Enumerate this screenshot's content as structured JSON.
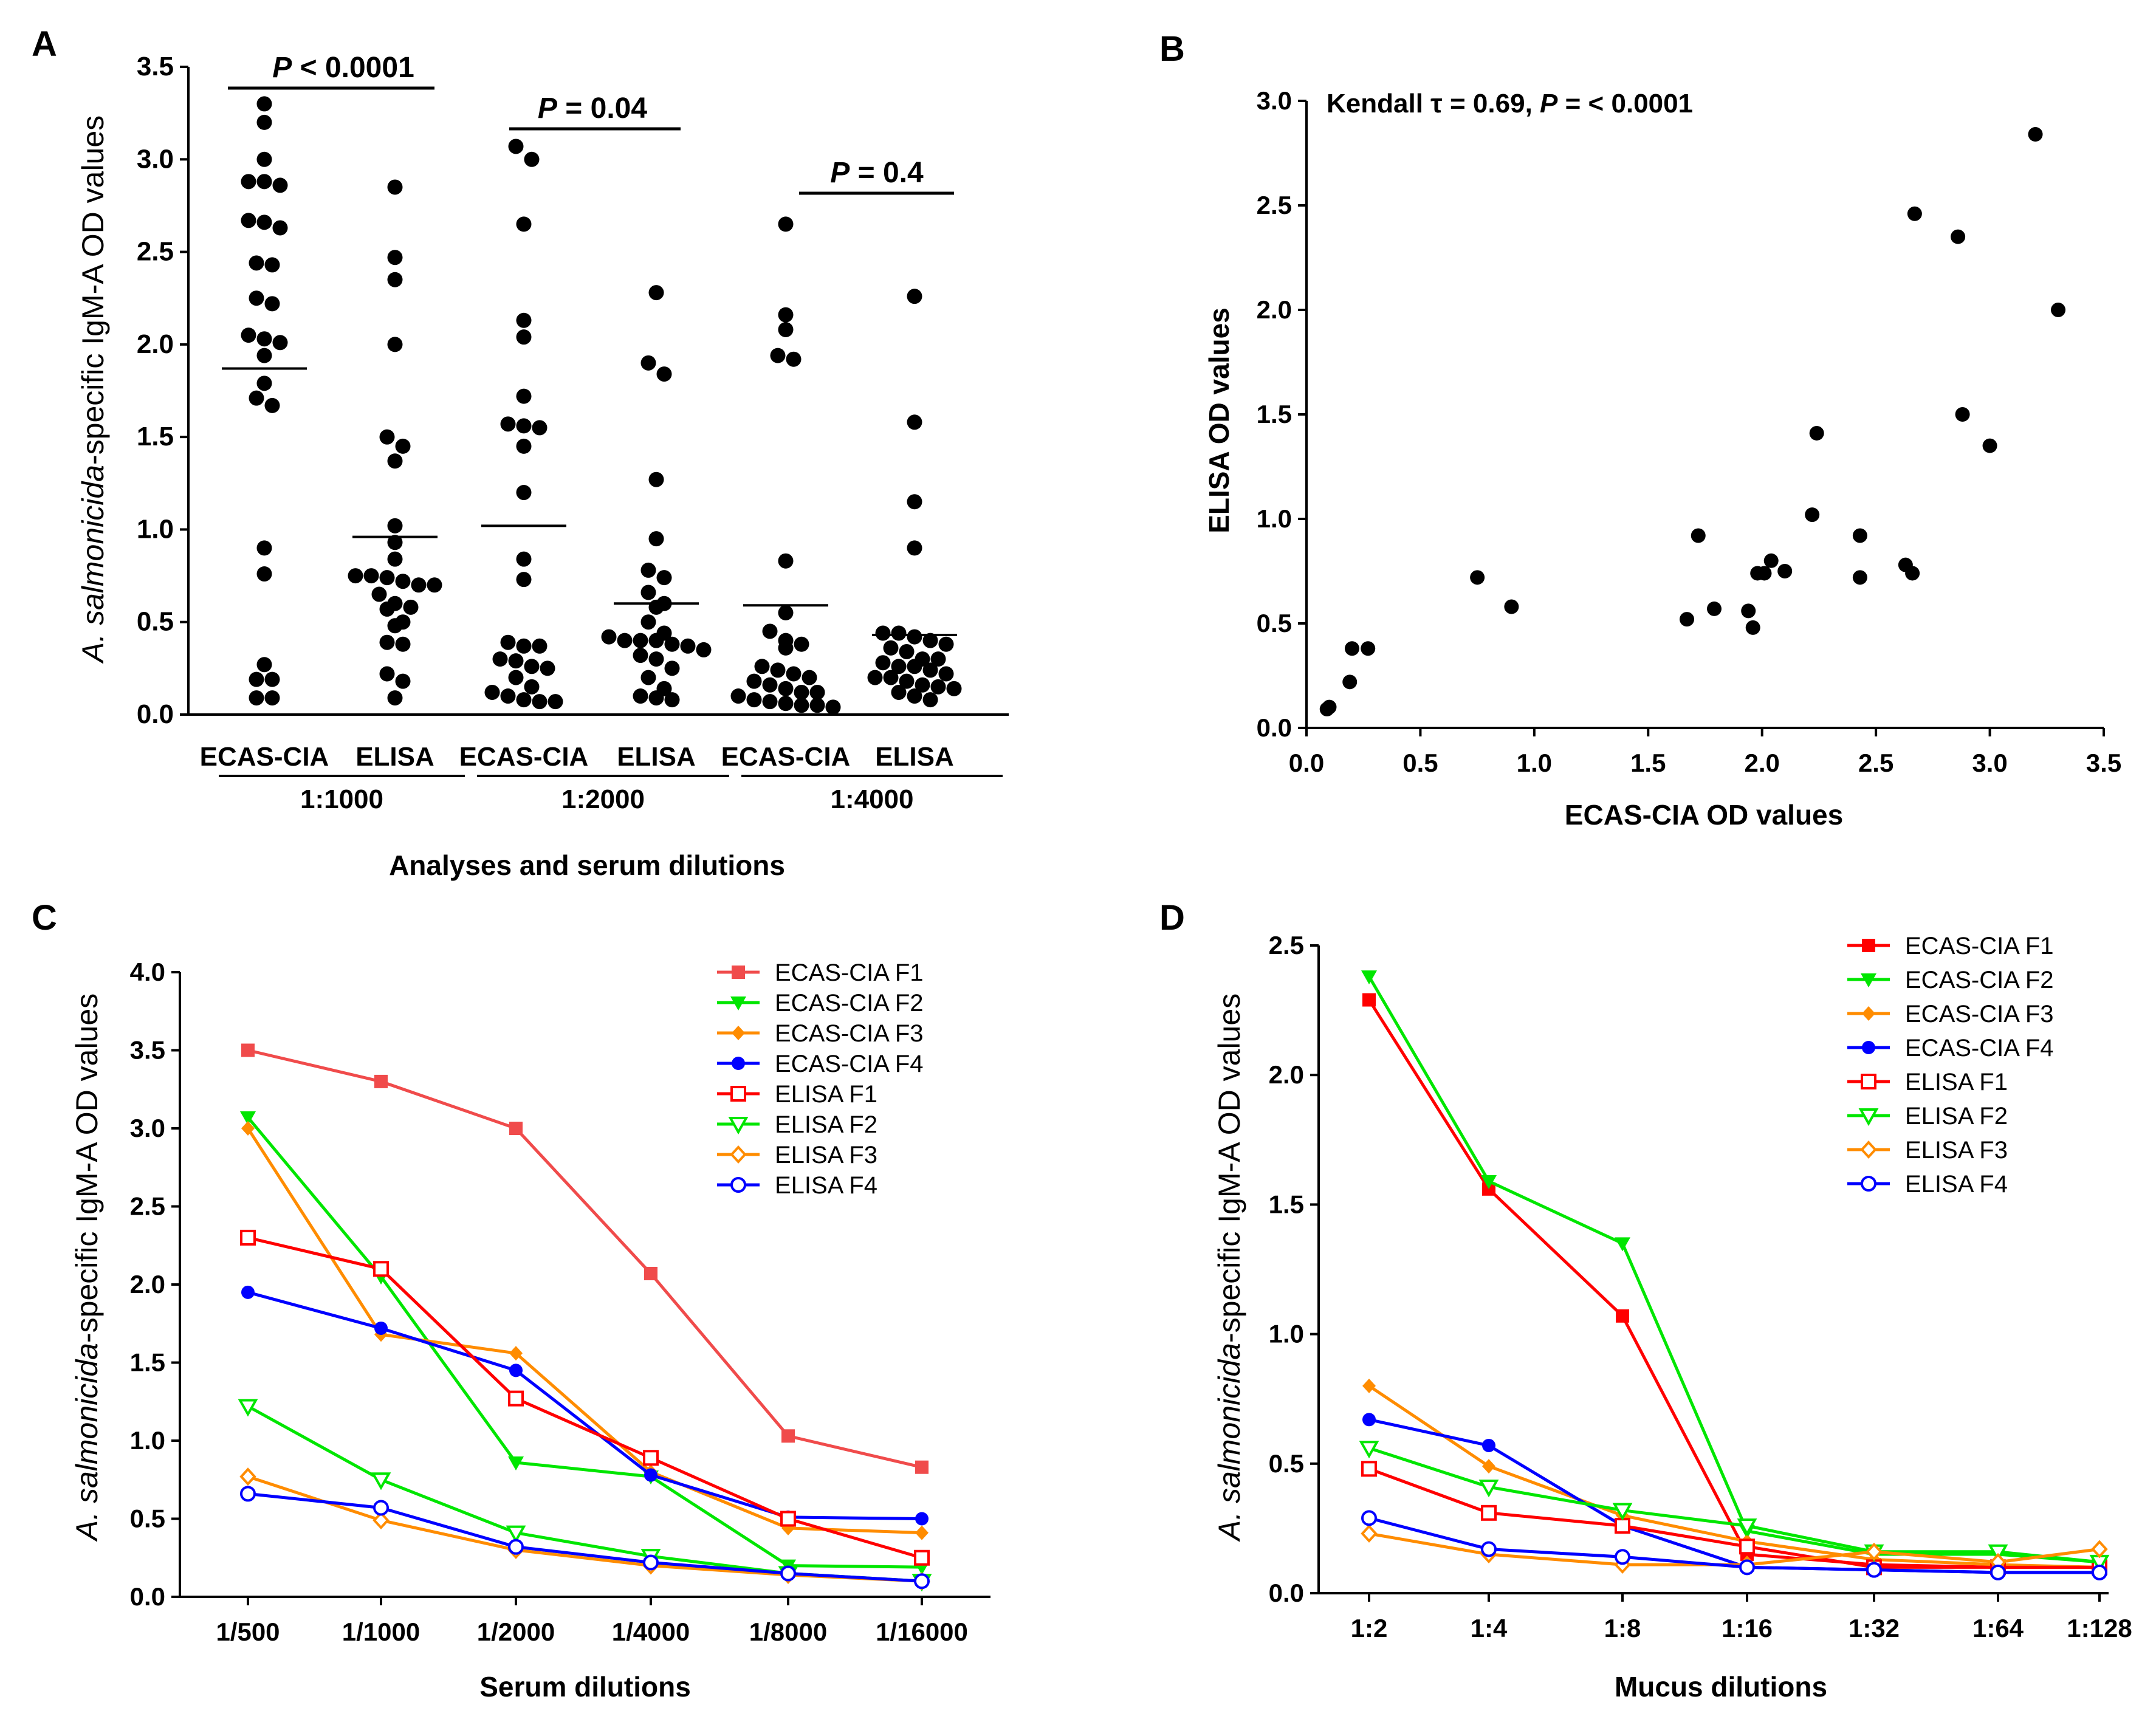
{
  "panels": {
    "a": "A",
    "b": "B",
    "c": "C",
    "d": "D"
  },
  "colors": {
    "ink": "#000000",
    "red": "#ff0000",
    "salmon": "#f04b4b",
    "green": "#00e600",
    "orange": "#ff8c00",
    "blue": "#0000ff"
  },
  "chart_data": [
    {
      "id": "A",
      "type": "scatter",
      "ylabel_italic": "A. salmonicida",
      "ylabel_rest": "-specific IgM-A OD values",
      "xlabel": "Analyses and serum dilutions",
      "ylim": [
        0,
        3.5
      ],
      "y_ticks": [
        "0.0",
        "0.5",
        "1.0",
        "1.5",
        "2.0",
        "2.5",
        "3.0",
        "3.5"
      ],
      "columns": [
        {
          "label": "ECAS-CIA",
          "group": 0,
          "mean": 1.87,
          "values": [
            3.3,
            3.2,
            3.0,
            2.88,
            2.88,
            2.86,
            2.67,
            2.66,
            2.63,
            2.44,
            2.43,
            2.25,
            2.22,
            2.05,
            2.03,
            2.01,
            1.94,
            1.79,
            1.71,
            1.67,
            0.9,
            0.76,
            0.27,
            0.19,
            0.19,
            0.09,
            0.09
          ]
        },
        {
          "label": "ELISA",
          "group": 0,
          "mean": 0.96,
          "values": [
            2.85,
            2.47,
            2.35,
            2.0,
            1.5,
            1.45,
            1.37,
            1.02,
            0.93,
            0.84,
            0.75,
            0.75,
            0.74,
            0.72,
            0.7,
            0.7,
            0.65,
            0.6,
            0.58,
            0.57,
            0.5,
            0.48,
            0.39,
            0.38,
            0.22,
            0.18,
            0.09
          ]
        },
        {
          "label": "ECAS-CIA",
          "group": 1,
          "mean": 1.02,
          "values": [
            3.07,
            3.0,
            2.65,
            2.13,
            2.04,
            1.72,
            1.57,
            1.56,
            1.55,
            1.45,
            1.2,
            0.84,
            0.73,
            0.39,
            0.37,
            0.37,
            0.3,
            0.29,
            0.26,
            0.25,
            0.2,
            0.15,
            0.12,
            0.1,
            0.08,
            0.07,
            0.07
          ]
        },
        {
          "label": "ELISA",
          "group": 1,
          "mean": 0.6,
          "values": [
            2.28,
            1.9,
            1.84,
            1.27,
            0.95,
            0.78,
            0.74,
            0.66,
            0.6,
            0.58,
            0.5,
            0.44,
            0.42,
            0.4,
            0.4,
            0.4,
            0.38,
            0.37,
            0.35,
            0.32,
            0.3,
            0.25,
            0.2,
            0.14,
            0.1,
            0.09,
            0.08
          ]
        },
        {
          "label": "ECAS-CIA",
          "group": 2,
          "mean": 0.59,
          "values": [
            2.65,
            2.16,
            2.08,
            1.94,
            1.92,
            0.83,
            0.55,
            0.45,
            0.4,
            0.38,
            0.36,
            0.26,
            0.24,
            0.22,
            0.2,
            0.18,
            0.16,
            0.14,
            0.12,
            0.12,
            0.1,
            0.08,
            0.07,
            0.06,
            0.05,
            0.05,
            0.04
          ]
        },
        {
          "label": "ELISA",
          "group": 2,
          "mean": 0.43,
          "values": [
            2.26,
            1.58,
            1.15,
            0.9,
            0.44,
            0.44,
            0.42,
            0.4,
            0.38,
            0.36,
            0.34,
            0.3,
            0.3,
            0.28,
            0.26,
            0.26,
            0.24,
            0.22,
            0.2,
            0.2,
            0.18,
            0.16,
            0.15,
            0.14,
            0.12,
            0.1,
            0.08
          ]
        }
      ],
      "groups": [
        "1:1000",
        "1:2000",
        "1:4000"
      ],
      "comparisons": [
        {
          "p_symbol": "P",
          "p_text": "< 0.0001"
        },
        {
          "p_symbol": "P",
          "p_text": "=  0.04"
        },
        {
          "p_symbol": "P",
          "p_text": "=  0.4"
        }
      ]
    },
    {
      "id": "B",
      "type": "scatter",
      "annotation_prefix": "Kendall τ = 0.69, ",
      "annotation_p": "P",
      "annotation_suffix": " = < 0.0001",
      "xlabel": "ECAS-CIA OD values",
      "ylabel": "ELISA OD values",
      "xlim": [
        0,
        3.5
      ],
      "ylim": [
        0,
        3.0
      ],
      "x_ticks": [
        "0.0",
        "0.5",
        "1.0",
        "1.5",
        "2.0",
        "2.5",
        "3.0",
        "3.5"
      ],
      "y_ticks": [
        "0.0",
        "0.5",
        "1.0",
        "1.5",
        "2.0",
        "2.5",
        "3.0"
      ],
      "points": [
        [
          0.09,
          0.09
        ],
        [
          0.1,
          0.1
        ],
        [
          0.19,
          0.22
        ],
        [
          0.2,
          0.38
        ],
        [
          0.27,
          0.38
        ],
        [
          0.75,
          0.72
        ],
        [
          0.9,
          0.58
        ],
        [
          1.67,
          0.52
        ],
        [
          1.72,
          0.92
        ],
        [
          1.79,
          0.57
        ],
        [
          1.94,
          0.56
        ],
        [
          1.96,
          0.48
        ],
        [
          1.98,
          0.74
        ],
        [
          2.01,
          0.74
        ],
        [
          2.04,
          0.8
        ],
        [
          2.1,
          0.75
        ],
        [
          2.22,
          1.02
        ],
        [
          2.24,
          1.41
        ],
        [
          2.43,
          0.92
        ],
        [
          2.43,
          0.72
        ],
        [
          2.63,
          0.78
        ],
        [
          2.66,
          0.74
        ],
        [
          2.67,
          2.46
        ],
        [
          2.86,
          2.35
        ],
        [
          2.88,
          1.5
        ],
        [
          3.0,
          1.35
        ],
        [
          3.2,
          2.84
        ],
        [
          3.3,
          2.0
        ]
      ]
    },
    {
      "id": "C",
      "type": "line",
      "ylabel_italic": "A. salmonicida",
      "ylabel_rest": "-specific IgM-A OD values",
      "xlabel": "Serum dilutions",
      "categories": [
        "1/500",
        "1/1000",
        "1/2000",
        "1/4000",
        "1/8000",
        "1/16000"
      ],
      "ylim": [
        0,
        4.0
      ],
      "y_ticks": [
        "0.0",
        "0.5",
        "1.0",
        "1.5",
        "2.0",
        "2.5",
        "3.0",
        "3.5",
        "4.0"
      ],
      "series": [
        {
          "name": "ECAS-CIA F1",
          "color": "#f04b4b",
          "marker": "square-filled",
          "values": [
            3.5,
            3.3,
            3.0,
            2.07,
            1.03,
            0.83
          ]
        },
        {
          "name": "ECAS-CIA F2",
          "color": "#00e600",
          "marker": "triangle-filled",
          "values": [
            3.07,
            2.05,
            0.86,
            0.77,
            0.2,
            0.19
          ]
        },
        {
          "name": "ECAS-CIA F3",
          "color": "#ff8c00",
          "marker": "diamond-filled",
          "values": [
            3.0,
            1.68,
            1.56,
            0.8,
            0.44,
            0.41
          ]
        },
        {
          "name": "ECAS-CIA F4",
          "color": "#0000ff",
          "marker": "circle-filled",
          "values": [
            1.95,
            1.72,
            1.45,
            0.78,
            0.51,
            0.5
          ]
        },
        {
          "name": "ELISA F1",
          "color": "#ff0000",
          "marker": "square-open",
          "values": [
            2.3,
            2.1,
            1.27,
            0.89,
            0.5,
            0.25
          ]
        },
        {
          "name": "ELISA F2",
          "color": "#00e600",
          "marker": "triangle-open",
          "values": [
            1.22,
            0.75,
            0.41,
            0.26,
            0.15,
            0.1
          ]
        },
        {
          "name": "ELISA F3",
          "color": "#ff8c00",
          "marker": "diamond-open",
          "values": [
            0.77,
            0.49,
            0.3,
            0.2,
            0.14,
            0.1
          ]
        },
        {
          "name": "ELISA F4",
          "color": "#0000ff",
          "marker": "circle-open",
          "values": [
            0.66,
            0.57,
            0.32,
            0.22,
            0.15,
            0.1
          ]
        }
      ]
    },
    {
      "id": "D",
      "type": "line",
      "ylabel_italic": "A. salmonicida",
      "ylabel_rest": "-specific IgM-A OD values",
      "xlabel": "Mucus dilutions",
      "categories": [
        "1:2",
        "1:4",
        "1:8",
        "1:16",
        "1:32",
        "1:64",
        "1:128"
      ],
      "ylim": [
        0,
        2.5
      ],
      "y_ticks": [
        "0.0",
        "0.5",
        "1.0",
        "1.5",
        "2.0",
        "2.5"
      ],
      "series": [
        {
          "name": "ECAS-CIA F1",
          "color": "#ff0000",
          "marker": "square-filled",
          "values": [
            2.29,
            1.56,
            1.07,
            0.15,
            0.11,
            0.1,
            0.1
          ]
        },
        {
          "name": "ECAS-CIA F2",
          "color": "#00e600",
          "marker": "triangle-filled",
          "values": [
            2.38,
            1.59,
            1.35,
            0.24,
            0.15,
            0.15,
            0.12
          ]
        },
        {
          "name": "ECAS-CIA F3",
          "color": "#ff8c00",
          "marker": "diamond-filled",
          "values": [
            0.8,
            0.49,
            0.3,
            0.2,
            0.13,
            0.11,
            0.1
          ]
        },
        {
          "name": "ECAS-CIA F4",
          "color": "#0000ff",
          "marker": "circle-filled",
          "values": [
            0.67,
            0.57,
            0.26,
            0.1,
            0.09,
            0.08,
            0.08
          ]
        },
        {
          "name": "ELISA F1",
          "color": "#ff0000",
          "marker": "square-open",
          "values": [
            0.48,
            0.31,
            0.26,
            0.18,
            0.1,
            0.1,
            0.1
          ]
        },
        {
          "name": "ELISA F2",
          "color": "#00e600",
          "marker": "triangle-open",
          "values": [
            0.56,
            0.41,
            0.32,
            0.26,
            0.16,
            0.16,
            0.12
          ]
        },
        {
          "name": "ELISA F3",
          "color": "#ff8c00",
          "marker": "diamond-open",
          "values": [
            0.23,
            0.15,
            0.11,
            0.11,
            0.16,
            0.12,
            0.17
          ]
        },
        {
          "name": "ELISA F4",
          "color": "#0000ff",
          "marker": "circle-open",
          "values": [
            0.29,
            0.17,
            0.14,
            0.1,
            0.09,
            0.08,
            0.08
          ]
        }
      ]
    }
  ]
}
